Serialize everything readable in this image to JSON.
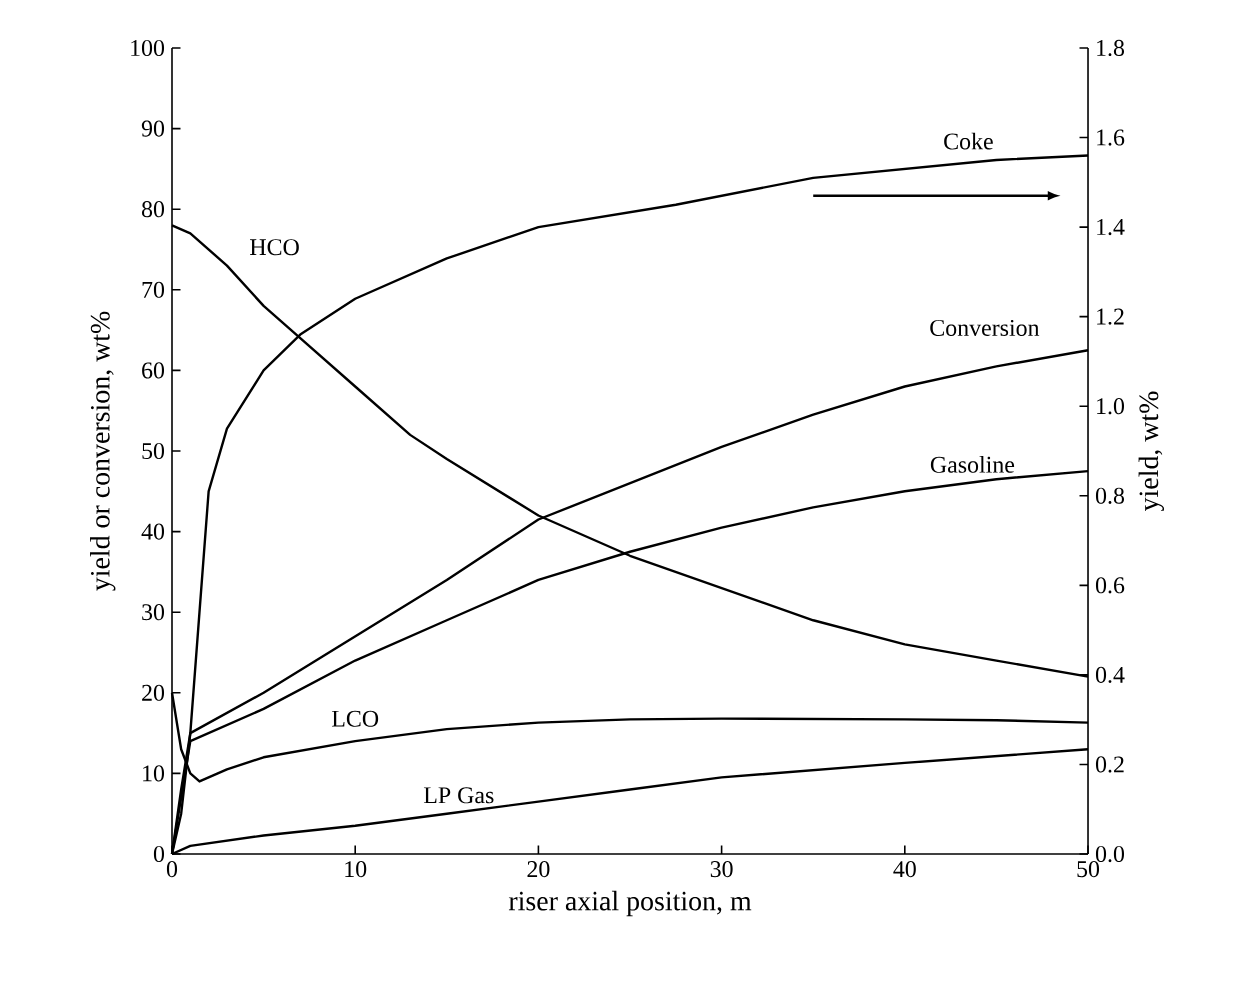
{
  "chart_data": {
    "type": "line",
    "xlabel": "riser axial position, m",
    "ylabel": "yield or conversion, wt%",
    "y2label": "yield, wt%",
    "xlim": [
      0,
      50
    ],
    "xticks": [
      0,
      10,
      20,
      30,
      40,
      50
    ],
    "ylim": [
      0,
      100
    ],
    "yticks": [
      0,
      10,
      20,
      30,
      40,
      50,
      60,
      70,
      80,
      90,
      100
    ],
    "y2lim": [
      0,
      1.8
    ],
    "y2ticks": [
      {
        "value": 0,
        "label": "0.0"
      },
      0.2,
      0.4,
      0.6,
      0.8,
      {
        "value": 1,
        "label": "1.0"
      },
      1.2,
      1.4,
      1.6,
      1.8
    ],
    "grid": false,
    "legend": false,
    "marker": "none",
    "line_style": "solid",
    "series": [
      {
        "name": "Coke",
        "color": "#000000",
        "axis": "y2",
        "x": [
          0,
          0.5,
          1,
          1.5,
          2,
          3,
          5,
          7,
          10,
          15,
          20,
          27.5,
          35,
          40,
          45,
          50
        ],
        "values": [
          0,
          0.09,
          0.27,
          0.54,
          0.81,
          0.95,
          1.08,
          1.16,
          1.24,
          1.33,
          1.4,
          1.45,
          1.51,
          1.53,
          1.55,
          1.56
        ]
      },
      {
        "name": "HCO",
        "color": "#000000",
        "x": [
          0,
          1,
          3,
          5,
          7,
          10,
          13,
          15,
          20,
          25,
          30,
          35,
          40,
          45,
          50
        ],
        "values": [
          78,
          77,
          73,
          68,
          64,
          58,
          52,
          49,
          42,
          37,
          33,
          29,
          26,
          24,
          22
        ]
      },
      {
        "name": "Conversion",
        "color": "#000000",
        "x": [
          0,
          0.5,
          1,
          5,
          10,
          15,
          20,
          25,
          30,
          35,
          40,
          45,
          50
        ],
        "values": [
          0,
          8,
          15,
          20,
          27,
          34,
          41.5,
          46,
          50.5,
          54.5,
          58,
          60.5,
          62.5
        ]
      },
      {
        "name": "Gasoline",
        "color": "#000000",
        "x": [
          0,
          0.5,
          1,
          5,
          10,
          15,
          20,
          25,
          30,
          35,
          40,
          45,
          50
        ],
        "values": [
          0,
          7,
          14,
          18,
          24,
          29,
          34,
          37.5,
          40.5,
          43,
          45,
          46.5,
          47.5
        ]
      },
      {
        "name": "LCO",
        "color": "#000000",
        "x": [
          0,
          0.5,
          1,
          1.5,
          3,
          5,
          10,
          15,
          20,
          25,
          30,
          40,
          45,
          50
        ],
        "values": [
          20,
          13,
          10,
          9,
          10.5,
          12,
          14,
          15.5,
          16.3,
          16.7,
          16.8,
          16.7,
          16.6,
          16.3
        ]
      },
      {
        "name": "LP Gas",
        "color": "#000000",
        "x": [
          0,
          1,
          5,
          10,
          15,
          20,
          25,
          30,
          40,
          50
        ],
        "values": [
          0,
          1,
          2.3,
          3.5,
          5,
          6.5,
          8,
          9.5,
          11.3,
          13
        ]
      }
    ]
  }
}
